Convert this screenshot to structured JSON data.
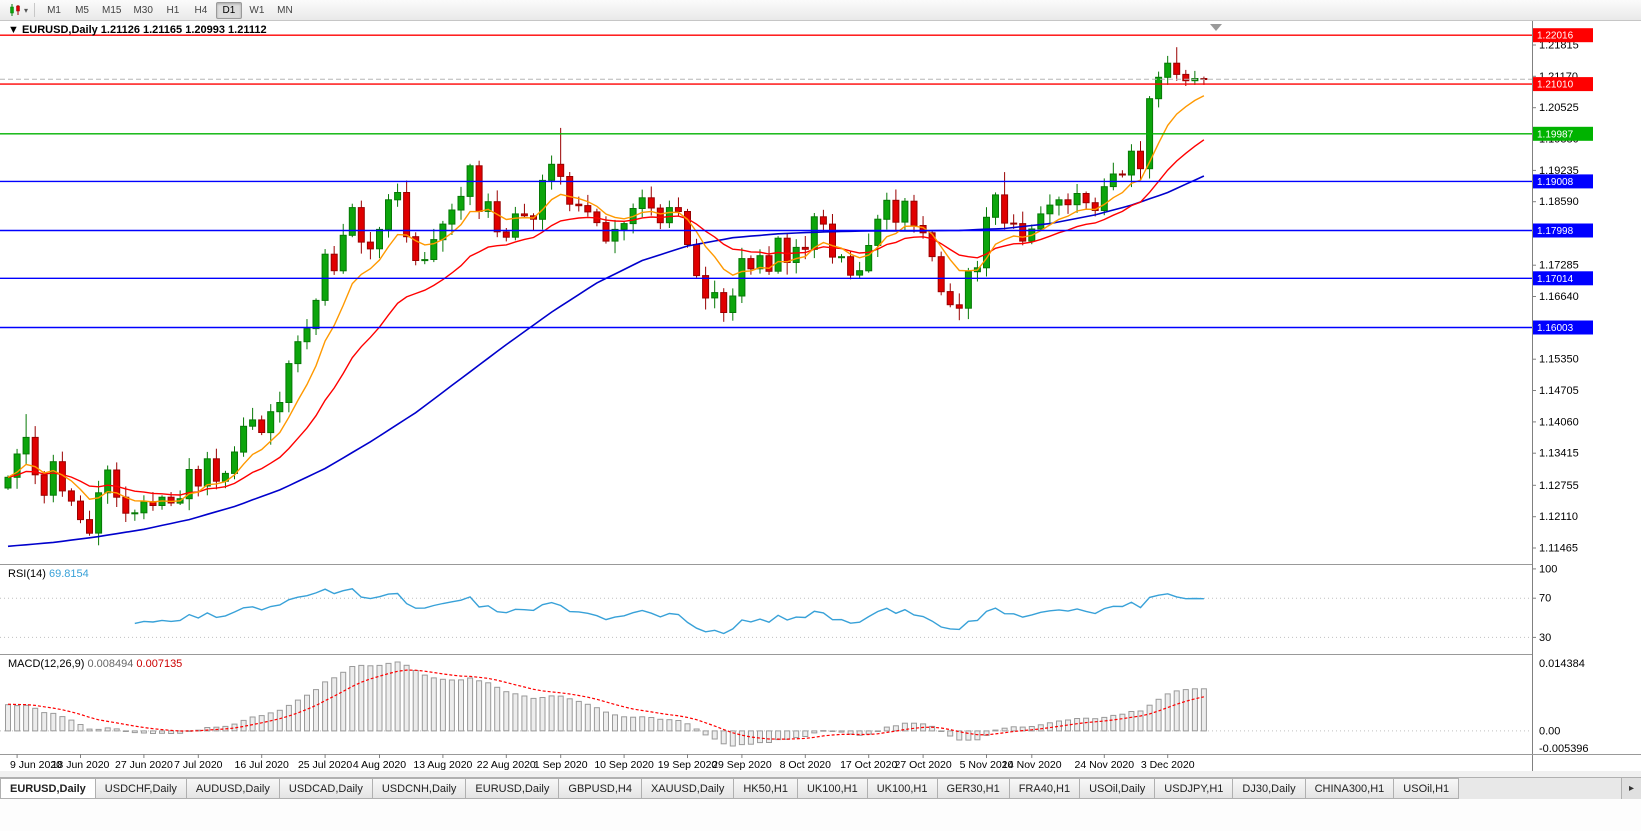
{
  "toolbar": {
    "timeframes": [
      "M1",
      "M5",
      "M15",
      "M30",
      "H1",
      "H4",
      "D1",
      "W1",
      "MN"
    ],
    "active": "D1"
  },
  "icons": {
    "dropdown": "▾",
    "scroll_right": "▸"
  },
  "header": {
    "collapse_marker": "▼",
    "symbol": "EURUSD,Daily",
    "ohlc": "1.21126 1.21165 1.20993 1.21112"
  },
  "tabs": {
    "active_index": 0,
    "items": [
      "EURUSD,Daily",
      "USDCHF,Daily",
      "AUDUSD,Daily",
      "USDCAD,Daily",
      "USDCNH,Daily",
      "EURUSD,Daily",
      "GBPUSD,H4",
      "XAUUSD,Daily",
      "HK50,H1",
      "UK100,H1",
      "UK100,H1",
      "GER30,H1",
      "FRA40,H1",
      "USOil,Daily",
      "USDJPY,H1",
      "DJ30,Daily",
      "CHINA300,H1",
      "USOil,H1"
    ]
  },
  "chart_data": {
    "type": "candlestick",
    "symbol": "EURUSD",
    "timeframe": "Daily",
    "first_open": 1.127,
    "closes": [
      1.1292,
      1.134,
      1.1374,
      1.1297,
      1.1255,
      1.1324,
      1.1264,
      1.1243,
      1.1205,
      1.1177,
      1.126,
      1.1307,
      1.1251,
      1.1218,
      1.1219,
      1.1242,
      1.1234,
      1.1251,
      1.1239,
      1.1248,
      1.1308,
      1.1274,
      1.133,
      1.1284,
      1.13,
      1.1344,
      1.1397,
      1.141,
      1.1384,
      1.1427,
      1.1446,
      1.1526,
      1.1571,
      1.1598,
      1.1656,
      1.1751,
      1.1717,
      1.179,
      1.1847,
      1.1776,
      1.1762,
      1.1802,
      1.1863,
      1.1878,
      1.1787,
      1.1738,
      1.174,
      1.1781,
      1.1813,
      1.1842,
      1.187,
      1.1933,
      1.1839,
      1.1859,
      1.1797,
      1.1786,
      1.1834,
      1.183,
      1.1823,
      1.1903,
      1.1936,
      1.1911,
      1.1854,
      1.1851,
      1.1838,
      1.1816,
      1.1778,
      1.1802,
      1.1814,
      1.1845,
      1.1867,
      1.1846,
      1.1816,
      1.1847,
      1.1839,
      1.1771,
      1.1707,
      1.1661,
      1.1672,
      1.1631,
      1.1665,
      1.1742,
      1.1721,
      1.1748,
      1.1716,
      1.1784,
      1.1734,
      1.1765,
      1.1761,
      1.1828,
      1.1813,
      1.1745,
      1.1746,
      1.1708,
      1.1717,
      1.1769,
      1.1823,
      1.1862,
      1.1817,
      1.186,
      1.181,
      1.1795,
      1.1746,
      1.1674,
      1.1647,
      1.164,
      1.1715,
      1.1723,
      1.1827,
      1.1873,
      1.1815,
      1.1814,
      1.1778,
      1.1803,
      1.1834,
      1.1852,
      1.1863,
      1.1853,
      1.1876,
      1.1857,
      1.1841,
      1.189,
      1.1916,
      1.1914,
      1.1963,
      1.1927,
      1.2071,
      1.2115,
      1.2144,
      1.2121,
      1.2108,
      1.21126,
      1.21112
    ],
    "wick_overrides": {
      "2": {
        "h": 1.1422
      },
      "61": {
        "h": 1.2011
      },
      "79": {
        "l": 1.1612
      },
      "110": {
        "h": 1.192
      },
      "128": {
        "h": 1.2159
      },
      "129": {
        "h": 1.2177
      },
      "132": {
        "h": 1.21165,
        "l": 1.20993
      }
    },
    "up_color": "#0ca50c",
    "up_stroke": "#067806",
    "down_color": "#e00000",
    "down_stroke": "#990000",
    "price_ticks": [
      "1.21815",
      "1.21170",
      "1.20525",
      "1.19880",
      "1.19235",
      "1.18590",
      "1.17945",
      "1.17285",
      "1.16640",
      "1.15995",
      "1.15350",
      "1.14705",
      "1.14060",
      "1.13415",
      "1.12755",
      "1.12110",
      "1.11465"
    ],
    "hlines": [
      {
        "price": 1.22016,
        "label": "1.22016",
        "color": "#ff0000"
      },
      {
        "price": 1.2101,
        "label": "1.21010",
        "color": "#ff0000"
      },
      {
        "price": 1.19987,
        "label": "1.19987",
        "color": "#00b300"
      },
      {
        "price": 1.19008,
        "label": "1.19008",
        "color": "#0000ff"
      },
      {
        "price": 1.17998,
        "label": "1.17998",
        "color": "#0000ff"
      },
      {
        "price": 1.17014,
        "label": "1.17014",
        "color": "#0000ff"
      },
      {
        "price": 1.16003,
        "label": "1.16003",
        "color": "#0000ff"
      }
    ],
    "bid_price": 1.21112,
    "ma_fast": {
      "period": 8,
      "color": "#ff9900"
    },
    "ma_slow": {
      "period": 20,
      "color": "#ff0000"
    },
    "ma_long": {
      "color": "#0000cc",
      "points": [
        [
          0,
          1.115
        ],
        [
          5,
          1.1158
        ],
        [
          10,
          1.117
        ],
        [
          15,
          1.1185
        ],
        [
          20,
          1.1205
        ],
        [
          25,
          1.1232
        ],
        [
          30,
          1.1266
        ],
        [
          35,
          1.131
        ],
        [
          40,
          1.1365
        ],
        [
          45,
          1.1425
        ],
        [
          50,
          1.1495
        ],
        [
          55,
          1.1565
        ],
        [
          60,
          1.1632
        ],
        [
          65,
          1.1692
        ],
        [
          70,
          1.1738
        ],
        [
          75,
          1.1768
        ],
        [
          80,
          1.1785
        ],
        [
          85,
          1.1793
        ],
        [
          90,
          1.1797
        ],
        [
          95,
          1.1799
        ],
        [
          100,
          1.1799
        ],
        [
          105,
          1.18
        ],
        [
          110,
          1.1804
        ],
        [
          115,
          1.1814
        ],
        [
          120,
          1.1832
        ],
        [
          124,
          1.1852
        ],
        [
          128,
          1.1878
        ],
        [
          132,
          1.1912
        ]
      ]
    },
    "date_labels": [
      [
        1,
        "9 Jun 2020"
      ],
      [
        8,
        "18 Jun 2020"
      ],
      [
        15,
        "27 Jun 2020"
      ],
      [
        21,
        "7 Jul 2020"
      ],
      [
        28,
        "16 Jul 2020"
      ],
      [
        35,
        "25 Jul 2020"
      ],
      [
        41,
        "4 Aug 2020"
      ],
      [
        48,
        "13 Aug 2020"
      ],
      [
        55,
        "22 Aug 2020"
      ],
      [
        61,
        "1 Sep 2020"
      ],
      [
        68,
        "10 Sep 2020"
      ],
      [
        75,
        "19 Sep 2020"
      ],
      [
        81,
        "29 Sep 2020"
      ],
      [
        88,
        "8 Oct 2020"
      ],
      [
        95,
        "17 Oct 2020"
      ],
      [
        101,
        "27 Oct 2020"
      ],
      [
        108,
        "5 Nov 2020"
      ],
      [
        113,
        "14 Nov 2020"
      ],
      [
        121,
        "24 Nov 2020"
      ],
      [
        128,
        "3 Dec 2020"
      ]
    ],
    "rsi": {
      "name": "RSI(14)",
      "value": "69.8154",
      "period": 14,
      "levels": [
        100,
        70,
        30
      ],
      "line_color": "#38a1d8"
    },
    "macd": {
      "name": "MACD(12,26,9)",
      "value_main": "0.008494",
      "value_signal": "0.007135",
      "fast": 12,
      "slow": 26,
      "signal": 9,
      "axis_top": "0.014384",
      "axis_zero": "0.00",
      "axis_bottom": "-0.005396",
      "bar_fill": "#ededed",
      "bar_stroke": "#9a9a9a",
      "signal_color": "#ff0000"
    }
  }
}
